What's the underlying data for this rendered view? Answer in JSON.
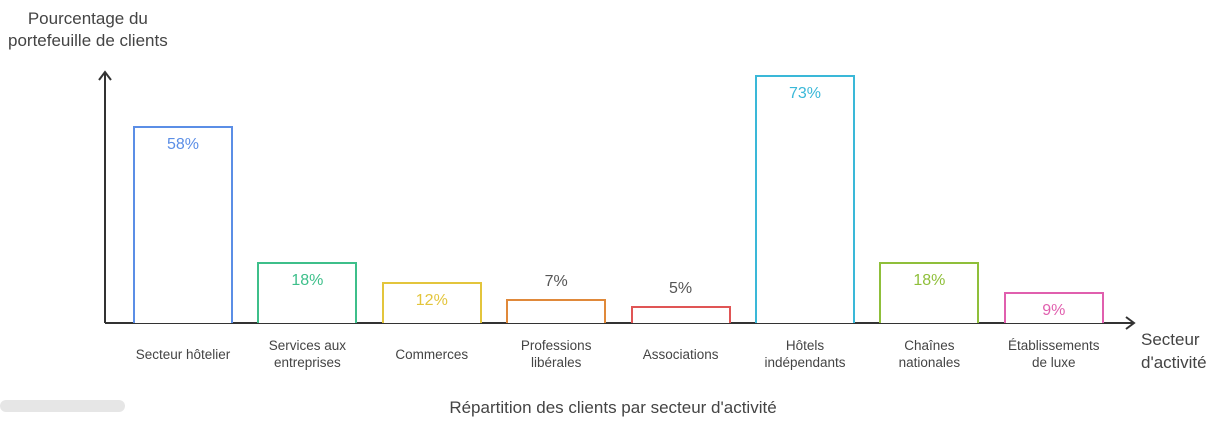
{
  "chart_data": {
    "type": "bar",
    "title": "Répartition des clients par secteur d'activité",
    "y_label": "Pourcentage du\nportefeuille de clients",
    "x_label": "Secteur\nd'activité",
    "categories": [
      "Secteur hôtelier",
      "Services aux\nentreprises",
      "Commerces",
      "Professions\nlibérales",
      "Associations",
      "Hôtels\nindépendants",
      "Chaînes\nnationales",
      "Établissements\nde luxe"
    ],
    "values": [
      58,
      18,
      12,
      7,
      5,
      73,
      18,
      9
    ],
    "value_labels": [
      "58%",
      "18%",
      "12%",
      "7%",
      "5%",
      "73%",
      "18%",
      "9%"
    ],
    "colors": [
      "#5b8ee6",
      "#3dbf8a",
      "#e3c53c",
      "#e0893a",
      "#e05555",
      "#3ab8d8",
      "#8fbf3a",
      "#e05fae"
    ]
  }
}
